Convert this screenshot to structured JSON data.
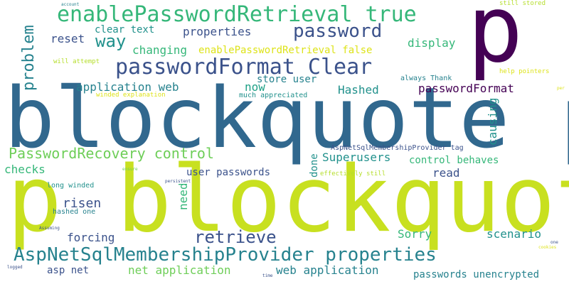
{
  "colors": {
    "background": "#ffffff",
    "deep_purple": "#440154",
    "indigo": "#3b528b",
    "steel_blue": "#31688e",
    "teal_blue": "#26828e",
    "teal": "#21918c",
    "sea_green": "#1fa187",
    "green": "#35b779",
    "light_green": "#6ece58",
    "yellow_green": "#b5de2b",
    "lime": "#c8e020",
    "yellow": "#dde318"
  },
  "words": {
    "p_big": "p",
    "blockquote_p": "blockquote p",
    "p_blockquote": "p blockquote",
    "enable_true": "enablePasswordRetrieval true",
    "password": "password",
    "pw_format_clear": "passwordFormat Clear",
    "way": "way",
    "clear_text": "clear text",
    "properties": "properties",
    "reset": "reset",
    "changing": "changing",
    "enable_false": "enablePasswordRetrieval false",
    "display": "display",
    "problem": "problem",
    "application_web": "application web",
    "store_user": "store user",
    "now": "now",
    "hashed": "Hashed",
    "password_format": "passwordFormat",
    "pw_recovery": "PasswordRecovery control",
    "causing": "causing",
    "superusers": "Superusers",
    "control_behaves": "control behaves",
    "provider_tag": "AspNetSqlMembershipProvider tag",
    "checks": "checks",
    "user_passwords": "user passwords",
    "done": "done",
    "read": "read",
    "need": "need",
    "risen": "risen",
    "retrieve": "retrieve",
    "forcing": "forcing",
    "sorry": "Sorry",
    "scenario": "scenario",
    "provider_props": "AspNetSqlMembershipProvider properties",
    "asp_net": "asp net",
    "net_application": "net application",
    "web_application": "web application",
    "passwords_unencrypted": "passwords unencrypted",
    "long_winded": "long winded",
    "hashed_one": "hashed one",
    "will_attempt": "will attempt",
    "winded_explanation": "winded explanation",
    "much_appreciated": "much appreciated",
    "always_thank": "always Thank",
    "help_pointers": "help pointers",
    "effectively_still": "effectively still",
    "still_stored": "still stored",
    "account": "account",
    "ensure": "ensure",
    "persistent": "persistent",
    "assuming": "Assuming",
    "logged": "logged",
    "time": "time",
    "one": "one",
    "cookies": "cookies",
    "per": "per"
  }
}
